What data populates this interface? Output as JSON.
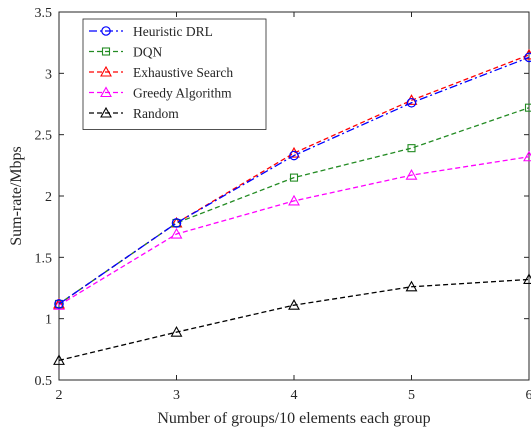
{
  "chart_data": {
    "type": "line",
    "xlabel": "Number of groups/10 elements each group",
    "ylabel": "Sum-rate/Mbps",
    "x": [
      2,
      3,
      4,
      5,
      6
    ],
    "xlim": [
      2,
      6
    ],
    "ylim": [
      0.5,
      3.5
    ],
    "xticks": [
      "2",
      "3",
      "4",
      "5",
      "6"
    ],
    "yticks": [
      "0.5",
      "1",
      "1.5",
      "2",
      "2.5",
      "3",
      "3.5"
    ],
    "grid": false,
    "legend_position": "top-left",
    "series": [
      {
        "name": "Heuristic DRL",
        "values": [
          1.12,
          1.78,
          2.33,
          2.76,
          3.13
        ],
        "color": "#0000ff",
        "dash": "dashdot",
        "marker": "circle"
      },
      {
        "name": "DQN",
        "values": [
          1.12,
          1.78,
          2.15,
          2.39,
          2.72
        ],
        "color": "#238b23",
        "dash": "dashed",
        "marker": "square"
      },
      {
        "name": "Exhaustive Search",
        "values": [
          1.12,
          1.78,
          2.35,
          2.78,
          3.15
        ],
        "color": "#ff0000",
        "dash": "dashed",
        "marker": "triangle"
      },
      {
        "name": "Greedy Algorithm",
        "values": [
          1.11,
          1.69,
          1.96,
          2.17,
          2.32
        ],
        "color": "#ff00ff",
        "dash": "dashed",
        "marker": "triangle"
      },
      {
        "name": "Random",
        "values": [
          0.66,
          0.89,
          1.11,
          1.26,
          1.32
        ],
        "color": "#000000",
        "dash": "dashed",
        "marker": "triangle"
      }
    ]
  }
}
